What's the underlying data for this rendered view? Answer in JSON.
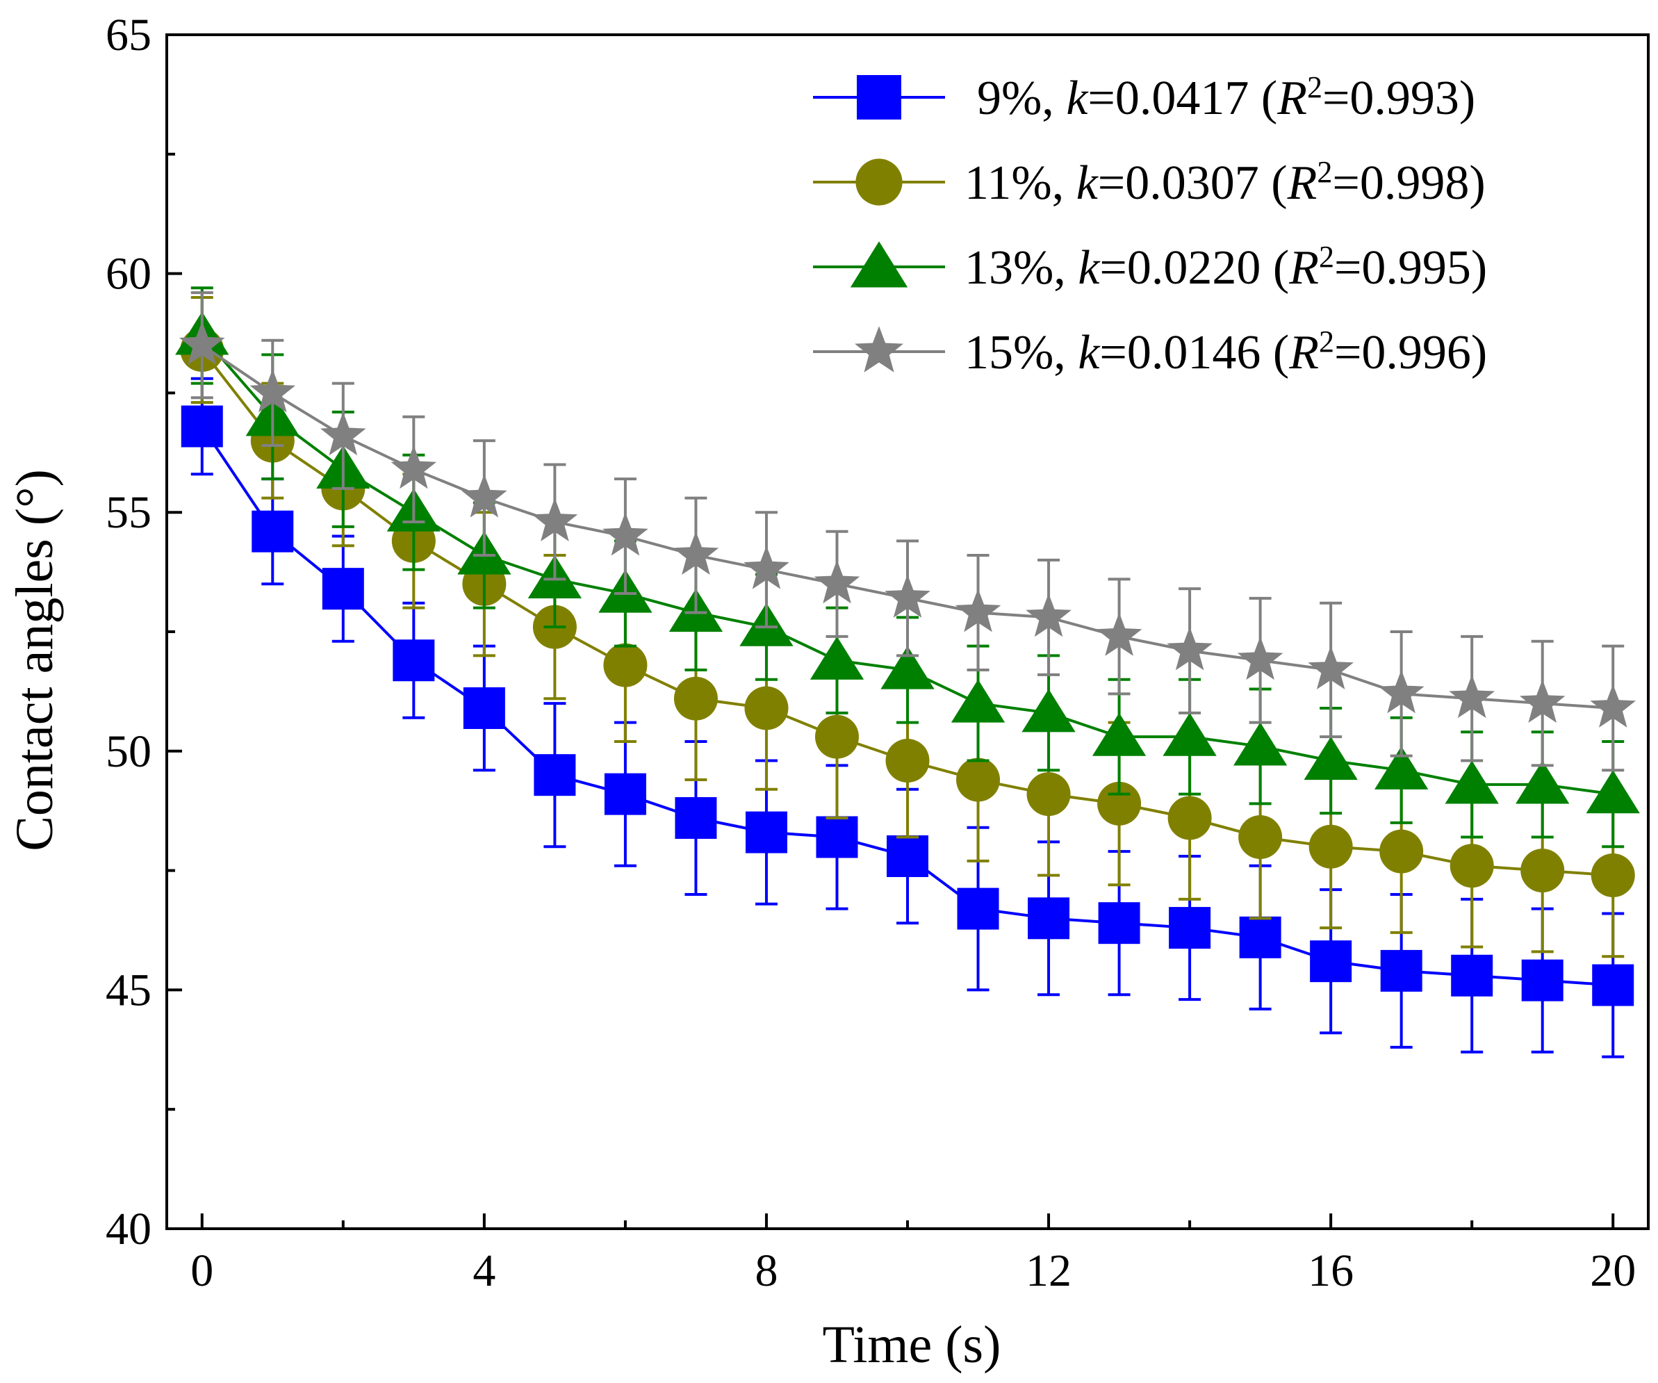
{
  "chart_data": {
    "type": "line",
    "title": "",
    "xlabel": "Time (s)",
    "ylabel": "Contact angles (°)",
    "xlim": [
      -0.5,
      20.5
    ],
    "ylim": [
      40,
      65
    ],
    "xticks": [
      0,
      4,
      8,
      12,
      16,
      20
    ],
    "yticks": [
      40,
      45,
      50,
      55,
      60,
      65
    ],
    "legend_position": "top-right",
    "x": [
      0,
      1,
      2,
      3,
      4,
      5,
      6,
      7,
      8,
      9,
      10,
      11,
      12,
      13,
      14,
      15,
      16,
      17,
      18,
      19,
      20
    ],
    "series": [
      {
        "name": "9%",
        "legend": {
          "pct": "9%, ",
          "k_sym": "k",
          "k_val": "=0.0417 (",
          "r_sym": "R",
          "r_sup": "2",
          "r_val": "=0.993)"
        },
        "color": "#0000ff",
        "marker": "square",
        "values": [
          56.8,
          54.6,
          53.4,
          51.9,
          50.9,
          49.5,
          49.1,
          48.6,
          48.3,
          48.2,
          47.8,
          46.7,
          46.5,
          46.4,
          46.3,
          46.1,
          45.6,
          45.4,
          45.3,
          45.2,
          45.1
        ],
        "errors": [
          1.0,
          1.1,
          1.1,
          1.2,
          1.3,
          1.5,
          1.5,
          1.6,
          1.5,
          1.5,
          1.4,
          1.7,
          1.6,
          1.5,
          1.5,
          1.5,
          1.5,
          1.6,
          1.6,
          1.5,
          1.5
        ]
      },
      {
        "name": "11%",
        "legend": {
          "pct": "11%, ",
          "k_sym": "k",
          "k_val": "=0.0307 (",
          "r_sym": "R",
          "r_sup": "2",
          "r_val": "=0.998)"
        },
        "color": "#808000",
        "marker": "circle",
        "values": [
          58.4,
          56.5,
          55.5,
          54.4,
          53.5,
          52.6,
          51.8,
          51.1,
          50.9,
          50.3,
          49.8,
          49.4,
          49.1,
          48.9,
          48.6,
          48.2,
          48.0,
          47.9,
          47.6,
          47.5,
          47.4
        ],
        "errors": [
          1.1,
          1.2,
          1.2,
          1.4,
          1.5,
          1.5,
          1.6,
          1.7,
          1.7,
          1.7,
          1.6,
          1.7,
          1.7,
          1.7,
          1.7,
          1.7,
          1.7,
          1.7,
          1.7,
          1.7,
          1.7
        ]
      },
      {
        "name": "13%",
        "legend": {
          "pct": "13%, ",
          "k_sym": "k",
          "k_val": "=0.0220 (",
          "r_sym": "R",
          "r_sup": "2",
          "r_val": "=0.995)"
        },
        "color": "#008000",
        "marker": "triangle",
        "values": [
          58.7,
          57.0,
          55.9,
          55.0,
          54.1,
          53.6,
          53.3,
          52.9,
          52.6,
          51.9,
          51.7,
          51.0,
          50.8,
          50.3,
          50.3,
          50.1,
          49.8,
          49.6,
          49.3,
          49.3,
          49.1
        ],
        "errors": [
          1.0,
          1.3,
          1.2,
          1.2,
          1.1,
          1.0,
          1.1,
          1.2,
          1.1,
          1.1,
          1.1,
          1.2,
          1.2,
          1.2,
          1.2,
          1.2,
          1.1,
          1.1,
          1.1,
          1.1,
          1.1
        ]
      },
      {
        "name": "15%",
        "legend": {
          "pct": "15%, ",
          "k_sym": "k",
          "k_val": "=0.0146 (",
          "r_sym": "R",
          "r_sup": "2",
          "r_val": "=0.996)"
        },
        "color": "#808080",
        "marker": "star",
        "values": [
          58.5,
          57.5,
          56.6,
          55.9,
          55.3,
          54.8,
          54.5,
          54.1,
          53.8,
          53.5,
          53.2,
          52.9,
          52.8,
          52.4,
          52.1,
          51.9,
          51.7,
          51.2,
          51.1,
          51.0,
          50.9
        ],
        "errors": [
          1.1,
          1.1,
          1.1,
          1.1,
          1.2,
          1.2,
          1.2,
          1.2,
          1.2,
          1.1,
          1.2,
          1.2,
          1.2,
          1.2,
          1.3,
          1.3,
          1.4,
          1.3,
          1.3,
          1.3,
          1.3
        ]
      }
    ]
  }
}
